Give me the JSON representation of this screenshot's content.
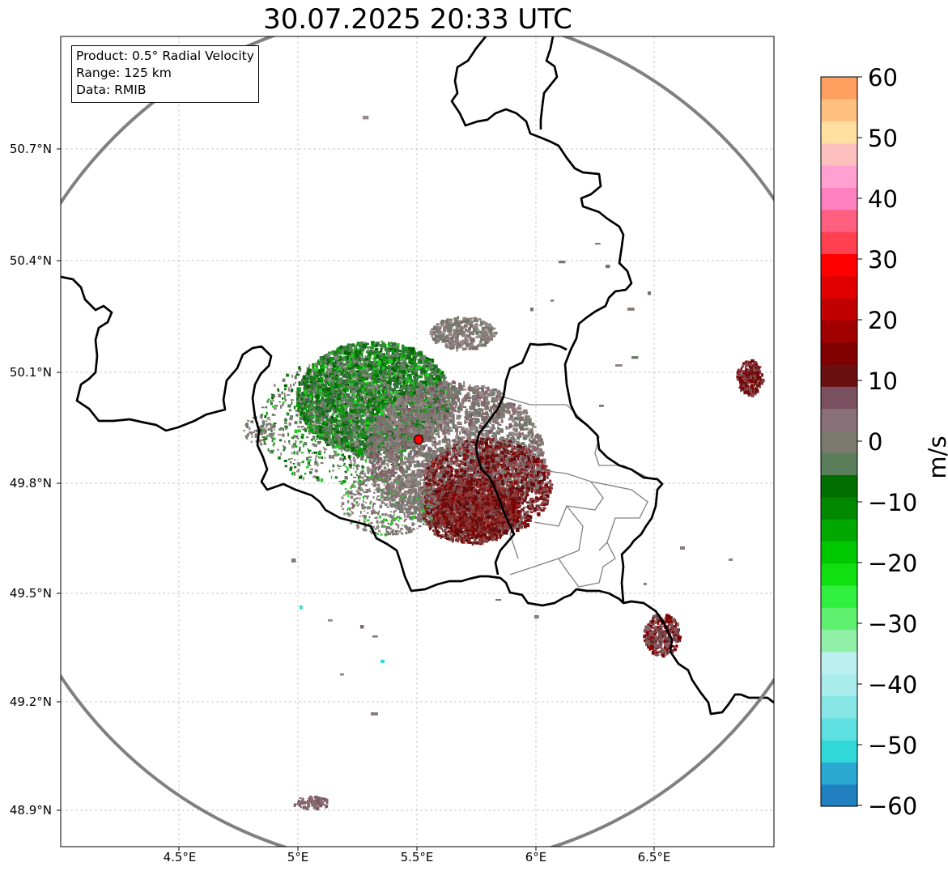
{
  "title": "30.07.2025 20:33 UTC",
  "info": {
    "product": "Product: 0.5° Radial Velocity",
    "range": "Range: 125 km",
    "source": "Data: RMIB"
  },
  "map": {
    "lon_range": [
      4.0,
      7.0
    ],
    "lat_range": [
      48.8,
      50.99
    ],
    "lon_ticks": [
      "4.5°E",
      "5°E",
      "5.5°E",
      "6°E",
      "6.5°E"
    ],
    "lat_ticks": [
      "50.7°N",
      "50.4°N",
      "50.1°N",
      "49.8°N",
      "49.5°N",
      "49.2°N",
      "48.9°N"
    ],
    "radar_site": {
      "lon": 5.5,
      "lat": 49.915
    },
    "range_ring_km": 125,
    "grid": true
  },
  "colorbar": {
    "label": "m/s",
    "ticks": [
      "60",
      "50",
      "40",
      "30",
      "20",
      "10",
      "0",
      "−10",
      "−20",
      "−30",
      "−40",
      "−50",
      "−60"
    ],
    "vmin": -60,
    "vmax": 60,
    "colors": [
      "#2080c0",
      "#2aa8d2",
      "#30d8d8",
      "#5ee0e0",
      "#88e6e6",
      "#a8ecec",
      "#bcf0f0",
      "#90f0a8",
      "#60f070",
      "#30f040",
      "#10e010",
      "#00c800",
      "#00a800",
      "#008800",
      "#006e00",
      "#5a7d5a",
      "#7a7a70",
      "#8a7078",
      "#7a5060",
      "#6a1010",
      "#800000",
      "#a00000",
      "#c00000",
      "#e00000",
      "#ff0000",
      "#ff4050",
      "#ff6080",
      "#ff80c0",
      "#ffa0d0",
      "#ffc0c0",
      "#ffe0a0",
      "#ffc080",
      "#ffa060"
    ]
  }
}
